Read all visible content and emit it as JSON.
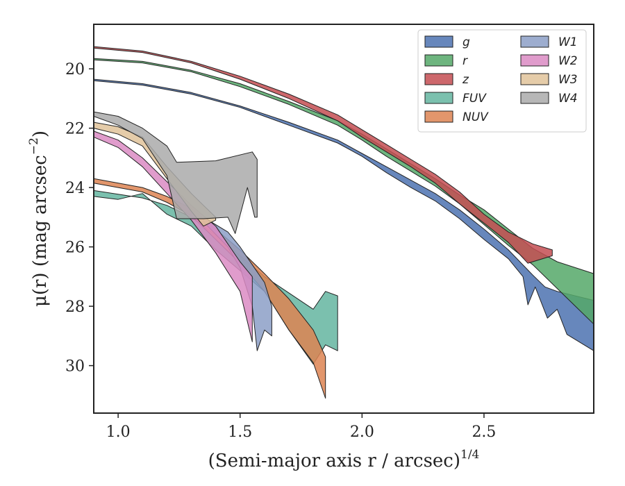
{
  "chart_data": {
    "type": "area",
    "xlabel": "(Semi-major axis r / arcsec)",
    "xlabel_sup": "1/4",
    "ylabel": "μ(r) (mag arcsec",
    "ylabel_sup": "−2",
    "ylabel_end": ")",
    "xlim": [
      0.9,
      2.95
    ],
    "ylim": [
      31.6,
      18.5
    ],
    "y_inverted": true,
    "grid": false,
    "legend_placement": "top-right",
    "legend_columns": 2,
    "xticks": [
      {
        "value": 1.0,
        "label": "1.0"
      },
      {
        "value": 1.5,
        "label": "1.5"
      },
      {
        "value": 2.0,
        "label": "2.0"
      },
      {
        "value": 2.5,
        "label": "2.5"
      }
    ],
    "yticks": [
      {
        "value": 20,
        "label": "20"
      },
      {
        "value": 22,
        "label": "22"
      },
      {
        "value": 24,
        "label": "24"
      },
      {
        "value": 26,
        "label": "26"
      },
      {
        "value": 28,
        "label": "28"
      },
      {
        "value": 30,
        "label": "30"
      }
    ],
    "series": [
      {
        "name": "g",
        "color": "#4c72b0",
        "upper": [
          [
            0.9,
            20.35
          ],
          [
            1.1,
            20.5
          ],
          [
            1.3,
            20.8
          ],
          [
            1.5,
            21.25
          ],
          [
            1.7,
            21.8
          ],
          [
            1.9,
            22.4
          ],
          [
            2.0,
            22.85
          ],
          [
            2.1,
            23.3
          ],
          [
            2.2,
            23.75
          ],
          [
            2.3,
            24.2
          ],
          [
            2.4,
            24.75
          ],
          [
            2.5,
            25.4
          ],
          [
            2.6,
            26.1
          ],
          [
            2.7,
            26.95
          ],
          [
            2.75,
            27.35
          ],
          [
            2.8,
            27.5
          ],
          [
            2.9,
            27.7
          ],
          [
            2.95,
            27.8
          ]
        ],
        "lower": [
          [
            0.9,
            20.4
          ],
          [
            1.1,
            20.55
          ],
          [
            1.3,
            20.85
          ],
          [
            1.5,
            21.3
          ],
          [
            1.7,
            21.9
          ],
          [
            1.9,
            22.5
          ],
          [
            2.0,
            22.95
          ],
          [
            2.1,
            23.5
          ],
          [
            2.2,
            24.0
          ],
          [
            2.3,
            24.45
          ],
          [
            2.4,
            25.05
          ],
          [
            2.5,
            25.75
          ],
          [
            2.6,
            26.4
          ],
          [
            2.66,
            27.0
          ],
          [
            2.68,
            27.95
          ],
          [
            2.71,
            27.35
          ],
          [
            2.76,
            28.4
          ],
          [
            2.8,
            28.1
          ],
          [
            2.84,
            28.95
          ],
          [
            2.95,
            29.5
          ]
        ]
      },
      {
        "name": "r",
        "color": "#55a868",
        "upper": [
          [
            0.9,
            19.65
          ],
          [
            1.1,
            19.75
          ],
          [
            1.3,
            20.05
          ],
          [
            1.5,
            20.5
          ],
          [
            1.7,
            21.1
          ],
          [
            1.9,
            21.75
          ],
          [
            2.0,
            22.2
          ],
          [
            2.1,
            22.7
          ],
          [
            2.2,
            23.2
          ],
          [
            2.3,
            23.7
          ],
          [
            2.4,
            24.25
          ],
          [
            2.5,
            24.75
          ],
          [
            2.6,
            25.4
          ],
          [
            2.7,
            26.05
          ],
          [
            2.8,
            26.5
          ],
          [
            2.95,
            26.9
          ]
        ],
        "lower": [
          [
            0.9,
            19.7
          ],
          [
            1.1,
            19.8
          ],
          [
            1.3,
            20.1
          ],
          [
            1.5,
            20.6
          ],
          [
            1.7,
            21.2
          ],
          [
            1.9,
            21.9
          ],
          [
            2.0,
            22.4
          ],
          [
            2.1,
            22.95
          ],
          [
            2.2,
            23.45
          ],
          [
            2.3,
            23.95
          ],
          [
            2.4,
            24.55
          ],
          [
            2.5,
            25.25
          ],
          [
            2.6,
            25.95
          ],
          [
            2.7,
            26.6
          ],
          [
            2.8,
            27.4
          ],
          [
            2.95,
            28.6
          ]
        ]
      },
      {
        "name": "z",
        "color": "#c44e52",
        "upper": [
          [
            0.9,
            19.25
          ],
          [
            1.1,
            19.4
          ],
          [
            1.3,
            19.75
          ],
          [
            1.5,
            20.25
          ],
          [
            1.7,
            20.85
          ],
          [
            1.9,
            21.55
          ],
          [
            2.0,
            22.05
          ],
          [
            2.1,
            22.55
          ],
          [
            2.2,
            23.05
          ],
          [
            2.3,
            23.55
          ],
          [
            2.4,
            24.15
          ],
          [
            2.5,
            24.9
          ],
          [
            2.6,
            25.5
          ],
          [
            2.7,
            25.9
          ],
          [
            2.78,
            26.1
          ]
        ],
        "lower": [
          [
            0.9,
            19.3
          ],
          [
            1.1,
            19.45
          ],
          [
            1.3,
            19.8
          ],
          [
            1.5,
            20.35
          ],
          [
            1.7,
            21.0
          ],
          [
            1.9,
            21.75
          ],
          [
            2.0,
            22.3
          ],
          [
            2.1,
            22.8
          ],
          [
            2.2,
            23.3
          ],
          [
            2.3,
            23.85
          ],
          [
            2.4,
            24.55
          ],
          [
            2.5,
            25.2
          ],
          [
            2.6,
            25.85
          ],
          [
            2.68,
            26.55
          ],
          [
            2.78,
            26.3
          ]
        ]
      },
      {
        "name": "FUV",
        "color": "#64b5a0",
        "upper": [
          [
            0.9,
            24.1
          ],
          [
            1.1,
            24.35
          ],
          [
            1.2,
            24.6
          ],
          [
            1.3,
            25.0
          ],
          [
            1.4,
            25.6
          ],
          [
            1.5,
            26.3
          ],
          [
            1.6,
            27.0
          ],
          [
            1.7,
            27.55
          ],
          [
            1.8,
            28.1
          ],
          [
            1.85,
            27.5
          ],
          [
            1.9,
            27.65
          ]
        ],
        "lower": [
          [
            0.9,
            24.3
          ],
          [
            1.0,
            24.4
          ],
          [
            1.1,
            24.2
          ],
          [
            1.2,
            24.9
          ],
          [
            1.3,
            25.3
          ],
          [
            1.4,
            26.1
          ],
          [
            1.5,
            26.8
          ],
          [
            1.6,
            27.5
          ],
          [
            1.7,
            28.8
          ],
          [
            1.8,
            29.95
          ],
          [
            1.85,
            29.3
          ],
          [
            1.9,
            29.5
          ]
        ]
      },
      {
        "name": "NUV",
        "color": "#dd8452",
        "upper": [
          [
            0.9,
            23.7
          ],
          [
            1.1,
            24.0
          ],
          [
            1.2,
            24.3
          ],
          [
            1.3,
            24.7
          ],
          [
            1.4,
            25.4
          ],
          [
            1.5,
            26.1
          ],
          [
            1.6,
            26.9
          ],
          [
            1.7,
            27.75
          ],
          [
            1.8,
            28.8
          ],
          [
            1.85,
            29.7
          ]
        ],
        "lower": [
          [
            0.9,
            23.85
          ],
          [
            1.1,
            24.15
          ],
          [
            1.2,
            24.5
          ],
          [
            1.3,
            24.95
          ],
          [
            1.4,
            25.75
          ],
          [
            1.5,
            26.55
          ],
          [
            1.6,
            27.5
          ],
          [
            1.7,
            28.8
          ],
          [
            1.8,
            29.9
          ],
          [
            1.85,
            31.1
          ]
        ]
      },
      {
        "name": "W1",
        "color": "#8c9fc7",
        "upper": [
          [
            1.35,
            25.0
          ],
          [
            1.45,
            25.5
          ],
          [
            1.5,
            26.0
          ],
          [
            1.55,
            26.6
          ],
          [
            1.6,
            27.2
          ],
          [
            1.63,
            28.0
          ]
        ],
        "lower": [
          [
            1.35,
            25.15
          ],
          [
            1.45,
            26.0
          ],
          [
            1.5,
            26.7
          ],
          [
            1.55,
            28.0
          ],
          [
            1.57,
            29.5
          ],
          [
            1.6,
            28.8
          ],
          [
            1.63,
            29.0
          ]
        ]
      },
      {
        "name": "W2",
        "color": "#da8bc3",
        "upper": [
          [
            0.9,
            22.1
          ],
          [
            1.0,
            22.4
          ],
          [
            1.1,
            23.0
          ],
          [
            1.2,
            23.8
          ],
          [
            1.3,
            24.6
          ],
          [
            1.4,
            25.3
          ],
          [
            1.5,
            26.5
          ],
          [
            1.55,
            27.0
          ]
        ],
        "lower": [
          [
            0.9,
            22.3
          ],
          [
            1.0,
            22.65
          ],
          [
            1.1,
            23.3
          ],
          [
            1.2,
            24.2
          ],
          [
            1.3,
            25.1
          ],
          [
            1.4,
            26.2
          ],
          [
            1.5,
            27.5
          ],
          [
            1.55,
            29.2
          ]
        ]
      },
      {
        "name": "W3",
        "color": "#e1c39a",
        "upper": [
          [
            0.9,
            21.8
          ],
          [
            1.0,
            21.95
          ],
          [
            1.1,
            22.3
          ],
          [
            1.2,
            23.3
          ],
          [
            1.3,
            24.2
          ],
          [
            1.35,
            24.6
          ],
          [
            1.4,
            25.0
          ]
        ],
        "lower": [
          [
            0.9,
            22.0
          ],
          [
            1.0,
            22.2
          ],
          [
            1.1,
            22.6
          ],
          [
            1.2,
            23.7
          ],
          [
            1.3,
            24.8
          ],
          [
            1.35,
            25.3
          ],
          [
            1.4,
            25.1
          ]
        ]
      },
      {
        "name": "W4",
        "color": "#aaaaaa",
        "upper": [
          [
            0.9,
            21.45
          ],
          [
            1.0,
            21.6
          ],
          [
            1.1,
            22.0
          ],
          [
            1.2,
            22.6
          ],
          [
            1.24,
            23.15
          ],
          [
            1.4,
            23.1
          ],
          [
            1.55,
            22.8
          ],
          [
            1.57,
            23.05
          ]
        ],
        "lower": [
          [
            0.9,
            21.6
          ],
          [
            1.0,
            21.9
          ],
          [
            1.1,
            22.35
          ],
          [
            1.2,
            23.6
          ],
          [
            1.24,
            25.05
          ],
          [
            1.35,
            25.05
          ],
          [
            1.45,
            25.0
          ],
          [
            1.48,
            25.55
          ],
          [
            1.53,
            24.0
          ],
          [
            1.56,
            25.0
          ],
          [
            1.57,
            25.0
          ]
        ]
      }
    ]
  }
}
